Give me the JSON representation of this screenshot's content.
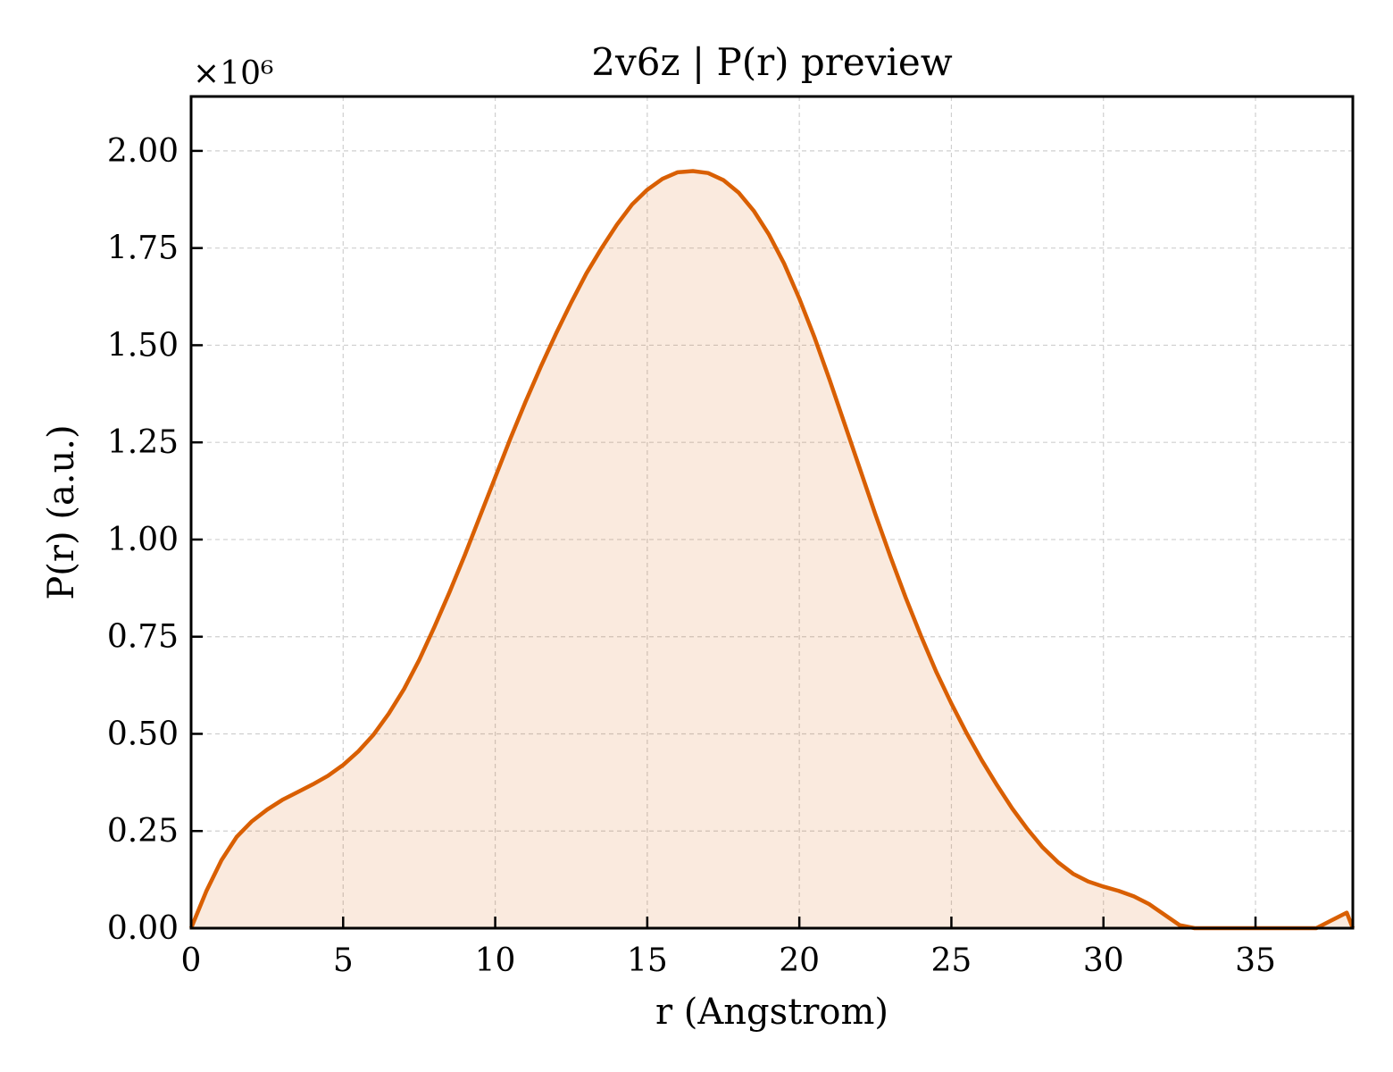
{
  "chart_data": {
    "type": "area",
    "title": "2v6z | P(r) preview",
    "xlabel": "r (Angstrom)",
    "ylabel": "P(r) (a.u.)",
    "y_multiplier": "×10⁶",
    "xlim": [
      0,
      38.2
    ],
    "ylim": [
      0,
      2.14
    ],
    "xticks": [
      0,
      5,
      10,
      15,
      20,
      25,
      30,
      35
    ],
    "xtick_labels": [
      "0",
      "5",
      "10",
      "15",
      "20",
      "25",
      "30",
      "35"
    ],
    "yticks": [
      0,
      0.25,
      0.5,
      0.75,
      1.0,
      1.25,
      1.5,
      1.75,
      2.0
    ],
    "ytick_labels": [
      "0.00",
      "0.25",
      "0.50",
      "0.75",
      "1.00",
      "1.25",
      "1.50",
      "1.75",
      "2.00"
    ],
    "grid": true,
    "series": [
      {
        "color": "#d95f02",
        "fill_color": "#d95f02",
        "fill_opacity": 0.13,
        "x": [
          0,
          0.5,
          1,
          1.5,
          2,
          2.5,
          3,
          3.5,
          4,
          4.5,
          5,
          5.5,
          6,
          6.5,
          7,
          7.5,
          8,
          8.5,
          9,
          9.5,
          10,
          10.5,
          11,
          11.5,
          12,
          12.5,
          13,
          13.5,
          14,
          14.5,
          15,
          15.5,
          16,
          16.5,
          17,
          17.5,
          18,
          18.5,
          19,
          19.5,
          20,
          20.5,
          21,
          21.5,
          22,
          22.5,
          23,
          23.5,
          24,
          24.5,
          25,
          25.5,
          26,
          26.5,
          27,
          27.5,
          28,
          28.5,
          29,
          29.5,
          30,
          30.5,
          31,
          31.5,
          32,
          32.5,
          33,
          33.5,
          34,
          34.5,
          35,
          35.5,
          36,
          36.5,
          37,
          37.5,
          38,
          38.2
        ],
        "y": [
          0,
          0.095,
          0.175,
          0.235,
          0.275,
          0.305,
          0.33,
          0.35,
          0.37,
          0.392,
          0.42,
          0.455,
          0.498,
          0.552,
          0.615,
          0.69,
          0.775,
          0.865,
          0.96,
          1.06,
          1.16,
          1.26,
          1.355,
          1.445,
          1.53,
          1.61,
          1.685,
          1.75,
          1.81,
          1.862,
          1.9,
          1.928,
          1.945,
          1.948,
          1.943,
          1.925,
          1.893,
          1.846,
          1.785,
          1.71,
          1.62,
          1.52,
          1.41,
          1.295,
          1.18,
          1.065,
          0.955,
          0.85,
          0.752,
          0.66,
          0.578,
          0.502,
          0.432,
          0.368,
          0.308,
          0.255,
          0.208,
          0.17,
          0.14,
          0.12,
          0.107,
          0.096,
          0.082,
          0.062,
          0.035,
          0.008,
          0,
          0,
          0,
          0,
          0,
          0,
          0,
          0,
          0,
          0.02,
          0.04,
          0
        ]
      }
    ]
  }
}
